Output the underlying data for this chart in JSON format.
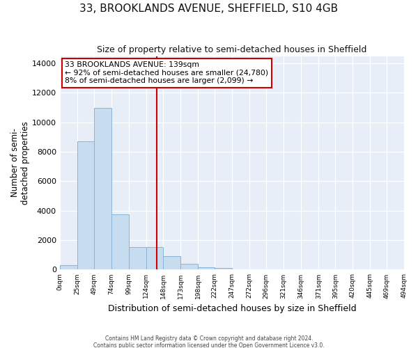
{
  "title": "33, BROOKLANDS AVENUE, SHEFFIELD, S10 4GB",
  "subtitle": "Size of property relative to semi-detached houses in Sheffield",
  "xlabel": "Distribution of semi-detached houses by size in Sheffield",
  "ylabel": "Number of semi-\ndetached properties",
  "property_size": 139,
  "property_label": "33 BROOKLANDS AVENUE: 139sqm",
  "pct_smaller": 92,
  "pct_larger": 8,
  "count_smaller": 24780,
  "count_larger": 2099,
  "bar_color": "#c8dcf0",
  "bar_edge_color": "#8ab4d4",
  "vline_color": "#cc0000",
  "annotation_box_edgecolor": "#cc0000",
  "figure_background": "#ffffff",
  "axes_background": "#e8eef8",
  "bin_edges": [
    0,
    25,
    49,
    74,
    99,
    124,
    148,
    173,
    198,
    222,
    247,
    272,
    296,
    321,
    346,
    371,
    395,
    420,
    445,
    469,
    494
  ],
  "bin_heights": [
    300,
    8700,
    11000,
    3750,
    1550,
    1550,
    900,
    400,
    150,
    100,
    0,
    0,
    0,
    0,
    0,
    0,
    0,
    0,
    0,
    0
  ],
  "ylim": [
    0,
    14500
  ],
  "yticks": [
    0,
    2000,
    4000,
    6000,
    8000,
    10000,
    12000,
    14000
  ],
  "xlim": [
    0,
    494
  ],
  "footer_line1": "Contains HM Land Registry data © Crown copyright and database right 2024.",
  "footer_line2": "Contains public sector information licensed under the Open Government Licence v3.0."
}
